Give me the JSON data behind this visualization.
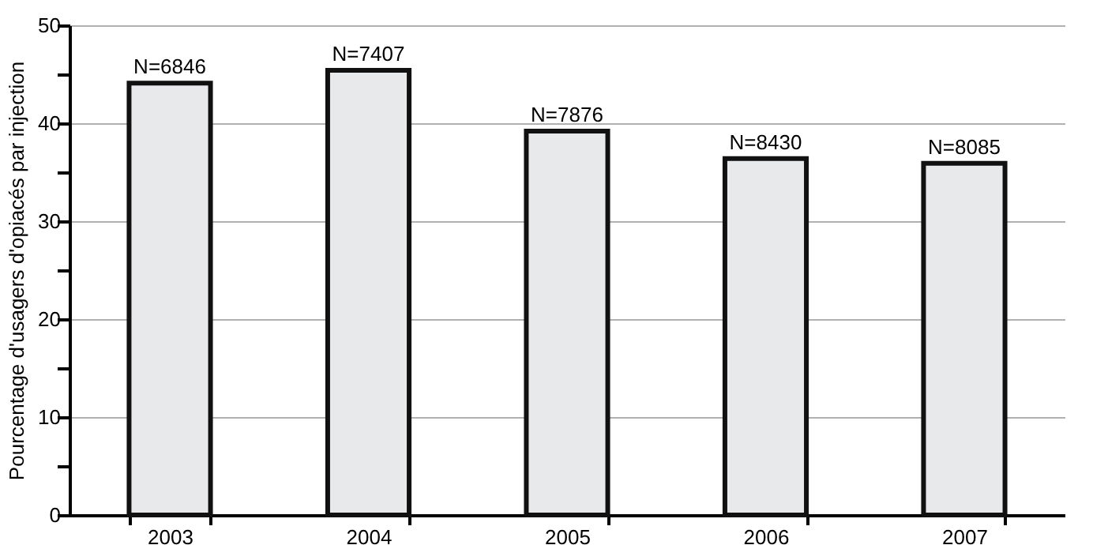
{
  "chart_data": {
    "type": "bar",
    "ylabel": "Pourcentage d'usagers d'opiacés par injection",
    "categories": [
      "2003",
      "2004",
      "2005",
      "2006",
      "2007"
    ],
    "values": [
      44.1,
      45.4,
      39.2,
      36.4,
      35.9
    ],
    "annotations": [
      {
        "text": "N=6846",
        "x": "2003",
        "y": 44.1
      },
      {
        "text": "N=7407",
        "x": "2004",
        "y": 45.4
      },
      {
        "text": "N=7876",
        "x": "2005",
        "y": 39.2
      },
      {
        "text": "N=8430",
        "x": "2006",
        "y": 36.4
      },
      {
        "text": "N=8085",
        "x": "2007",
        "y": 35.9
      }
    ],
    "color": "#e8e9eb",
    "ylim": [
      0,
      50
    ],
    "yticks": [
      0,
      {
        "value": 5,
        "label": null
      },
      10,
      {
        "value": 15,
        "label": null
      },
      20,
      {
        "value": 25,
        "label": null
      },
      30,
      {
        "value": 35,
        "label": null
      },
      40,
      {
        "value": 45,
        "label": null
      },
      50
    ],
    "grid": "y"
  }
}
